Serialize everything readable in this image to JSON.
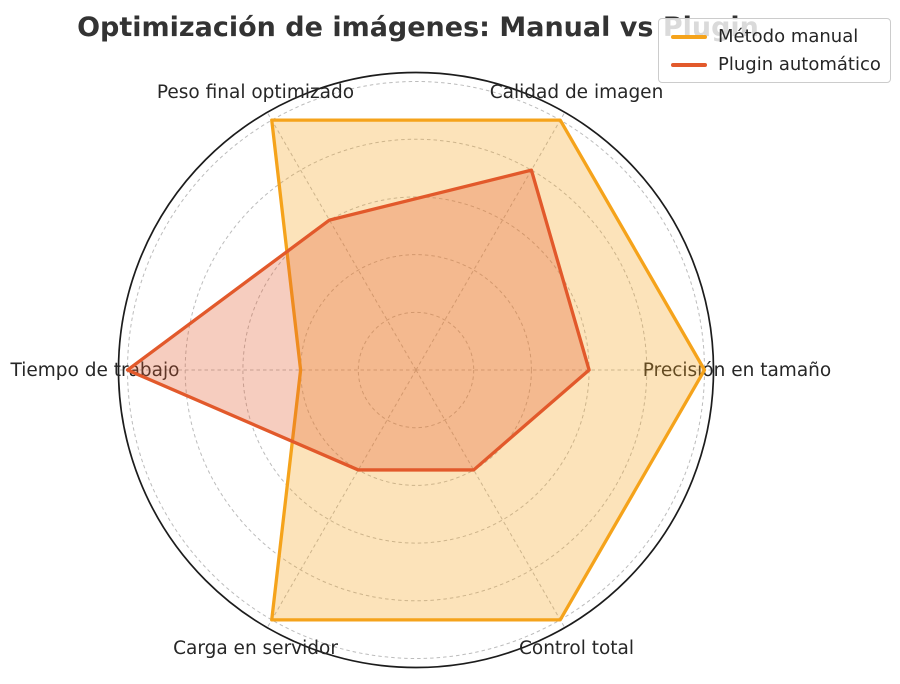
{
  "chart_data": {
    "type": "radar",
    "title": "Optimización de imágenes: Manual vs Plugin",
    "categories": [
      "Calidad de imagen",
      "Precisión en tamaño",
      "Control total",
      "Carga en servidor",
      "Tiempo de trabajo",
      "Peso final optimizado"
    ],
    "axis_angles_deg": [
      60,
      0,
      -60,
      -120,
      180,
      120
    ],
    "series": [
      {
        "name": "Método manual",
        "color": "#F5A31B",
        "values": [
          10,
          10,
          10,
          10,
          4,
          10
        ]
      },
      {
        "name": "Plugin automático",
        "color": "#E2592B",
        "values": [
          8,
          6,
          4,
          4,
          10,
          6
        ]
      }
    ],
    "r_axis": {
      "min": 0,
      "max": 10,
      "gridlines": [
        2,
        4,
        6,
        8,
        10
      ],
      "tick_labels_visible": false
    },
    "fill_opacity": 0.3,
    "grid": true,
    "grid_style": "dashed",
    "grid_color": "#bcbcbc",
    "spine_color": "#1c1c1c",
    "label_color": "#262626",
    "title_color": "#333333",
    "legend": {
      "position": "top-right",
      "border_color": "#cccccc",
      "background": "rgba(255,255,255,0.82)"
    }
  }
}
